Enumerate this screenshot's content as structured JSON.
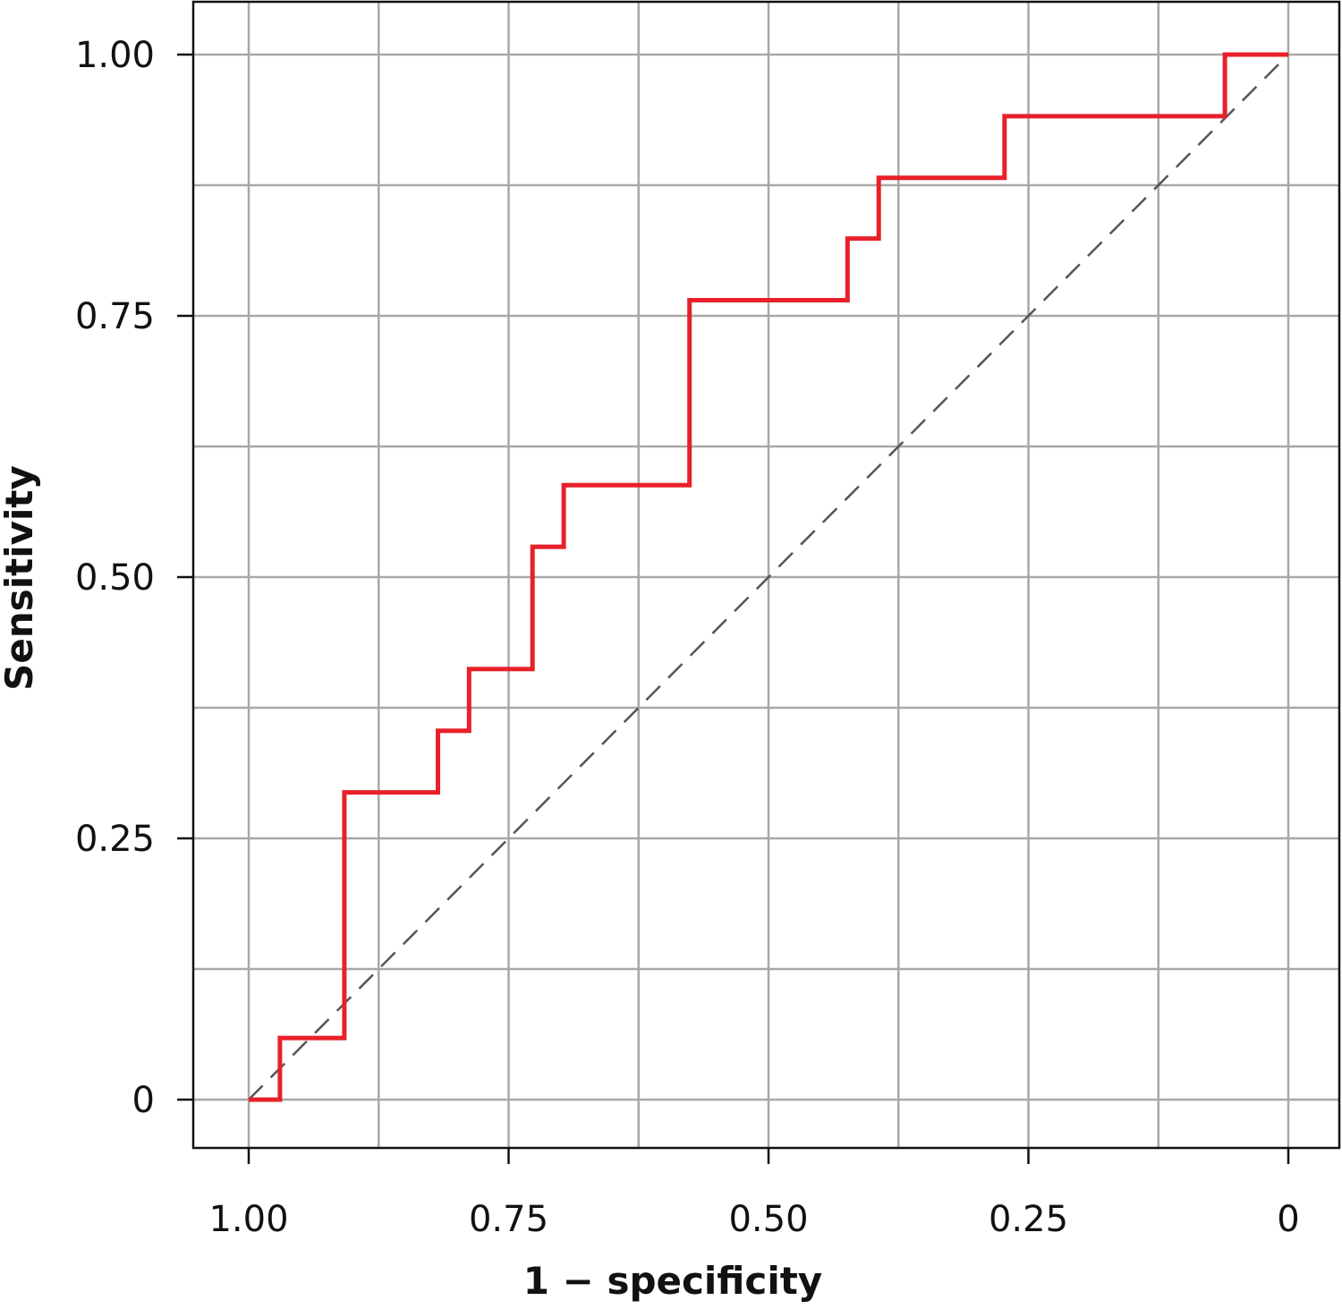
{
  "chart_data": {
    "type": "line",
    "xlabel": "1 − specificity",
    "ylabel": "Sensitivity",
    "xlim": [
      1.0,
      0.0
    ],
    "ylim": [
      0.0,
      1.0
    ],
    "x_reversed": true,
    "xticks": [
      1.0,
      0.75,
      0.5,
      0.25,
      0.0
    ],
    "xtick_labels": [
      "1.00",
      "0.75",
      "0.50",
      "0.25",
      "0"
    ],
    "yticks": [
      0.0,
      0.25,
      0.5,
      0.75,
      1.0
    ],
    "ytick_labels": [
      "0",
      "0.25",
      "0.50",
      "0.75",
      "1.00"
    ],
    "x_minor_gridlines": [
      0.875,
      0.625,
      0.375,
      0.125
    ],
    "y_minor_gridlines": [
      0.125,
      0.375,
      0.625,
      0.875
    ],
    "grid": true,
    "series": [
      {
        "color": "#e8202a",
        "style": "step",
        "points": [
          [
            1.0,
            0.0
          ],
          [
            0.97,
            0.0
          ],
          [
            0.97,
            0.059
          ],
          [
            0.908,
            0.059
          ],
          [
            0.908,
            0.294
          ],
          [
            0.818,
            0.294
          ],
          [
            0.818,
            0.353
          ],
          [
            0.788,
            0.353
          ],
          [
            0.788,
            0.412
          ],
          [
            0.727,
            0.412
          ],
          [
            0.727,
            0.529
          ],
          [
            0.697,
            0.529
          ],
          [
            0.697,
            0.588
          ],
          [
            0.576,
            0.588
          ],
          [
            0.576,
            0.765
          ],
          [
            0.424,
            0.765
          ],
          [
            0.424,
            0.824
          ],
          [
            0.394,
            0.824
          ],
          [
            0.394,
            0.882
          ],
          [
            0.273,
            0.882
          ],
          [
            0.273,
            0.941
          ],
          [
            0.061,
            0.941
          ],
          [
            0.061,
            1.0
          ],
          [
            0.0,
            1.0
          ]
        ]
      },
      {
        "color": "#555555",
        "style": "dashed",
        "points": [
          [
            1.0,
            0.0
          ],
          [
            0.0,
            1.0
          ]
        ]
      }
    ]
  }
}
